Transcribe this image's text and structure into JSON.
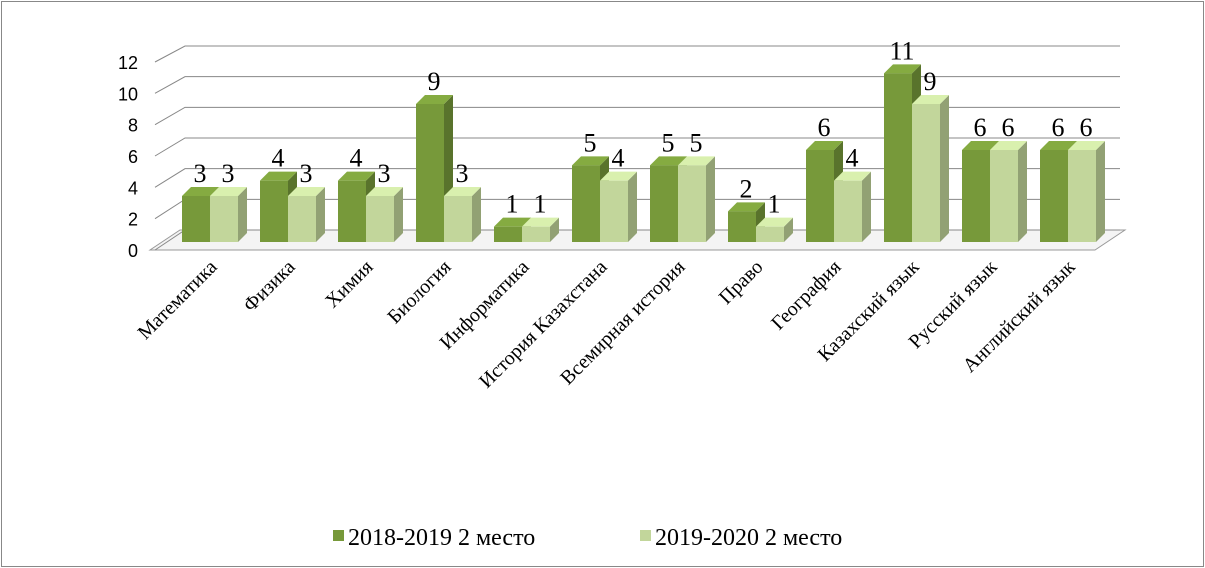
{
  "chart_data": {
    "type": "bar3d",
    "categories": [
      "Математика",
      "Физика",
      "Химия",
      "Биология",
      "Информатика",
      "История Казахстана",
      "Всемирная история",
      "Право",
      "География",
      "Казахский язык",
      "Русский язык",
      "Английский язык"
    ],
    "series": [
      {
        "name": "2018-2019 2 место",
        "color": "#77993a",
        "values": [
          3,
          4,
          4,
          9,
          1,
          5,
          5,
          2,
          6,
          11,
          6,
          6
        ]
      },
      {
        "name": "2019-2020 2 место",
        "color": "#c2d69b",
        "values": [
          3,
          3,
          3,
          3,
          1,
          4,
          5,
          1,
          4,
          9,
          6,
          6
        ]
      }
    ],
    "ylim": [
      0,
      12
    ],
    "yticks": [
      0,
      2,
      4,
      6,
      8,
      10,
      12
    ],
    "grid": true,
    "legend": "bottom"
  }
}
